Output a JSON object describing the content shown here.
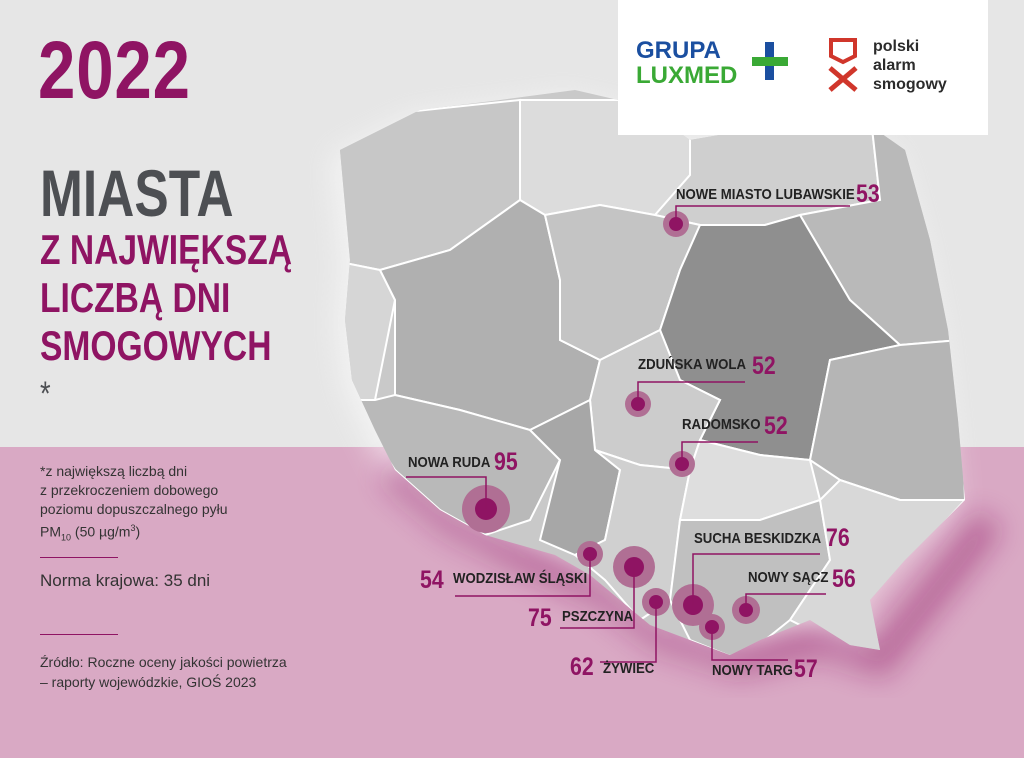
{
  "header": {
    "year": "2022",
    "title_main": "MIASTA",
    "title_sub_lines": [
      "Z NAJWIĘKSZĄ",
      "LICZBĄ DNI",
      "SMOGOWYCH"
    ],
    "title_asterisk": "*"
  },
  "footnote": {
    "lines": [
      "*z największą liczbą dni",
      "z przekroczeniem dobowego",
      "poziomu dopuszczalnego pyłu"
    ],
    "pm_prefix": "PM",
    "pm_sub": "10",
    "pm_suffix": " (50 µg/m",
    "pm_sup": "3",
    "pm_close": ")"
  },
  "norm": "Norma krajowa: 35 dni",
  "source": {
    "line1": "Źródło: Roczne oceny jakości powietrza",
    "line2": "– raporty wojewódzkie, GIOŚ 2023"
  },
  "logos": {
    "luxmed_line1": "GRUPA",
    "luxmed_line2": "LUXMED",
    "luxmed_cross_colors": [
      "#1b4fa0",
      "#3aa935"
    ],
    "psa_lines": [
      "polski",
      "alarm",
      "smogowy"
    ],
    "psa_icon": "mask-icon"
  },
  "colors": {
    "accent": "#8f1463",
    "text_dark": "#4d4f53",
    "bottom_band": "#d9a9c4"
  },
  "cities": [
    {
      "name": "NOWE MIASTO LUBAWSKIE",
      "days": "53"
    },
    {
      "name": "ZDUŃSKA WOLA",
      "days": "52"
    },
    {
      "name": "RADOMSKO",
      "days": "52"
    },
    {
      "name": "NOWA RUDA",
      "days": "95"
    },
    {
      "name": "SUCHA BESKIDZKA",
      "days": "76"
    },
    {
      "name": "NOWY SĄCZ",
      "days": "56"
    },
    {
      "name": "WODZISŁAW ŚLĄSKI",
      "days": "54"
    },
    {
      "name": "PSZCZYNA",
      "days": "75"
    },
    {
      "name": "ŻYWIEC",
      "days": "62"
    },
    {
      "name": "NOWY TARG",
      "days": "57"
    }
  ]
}
